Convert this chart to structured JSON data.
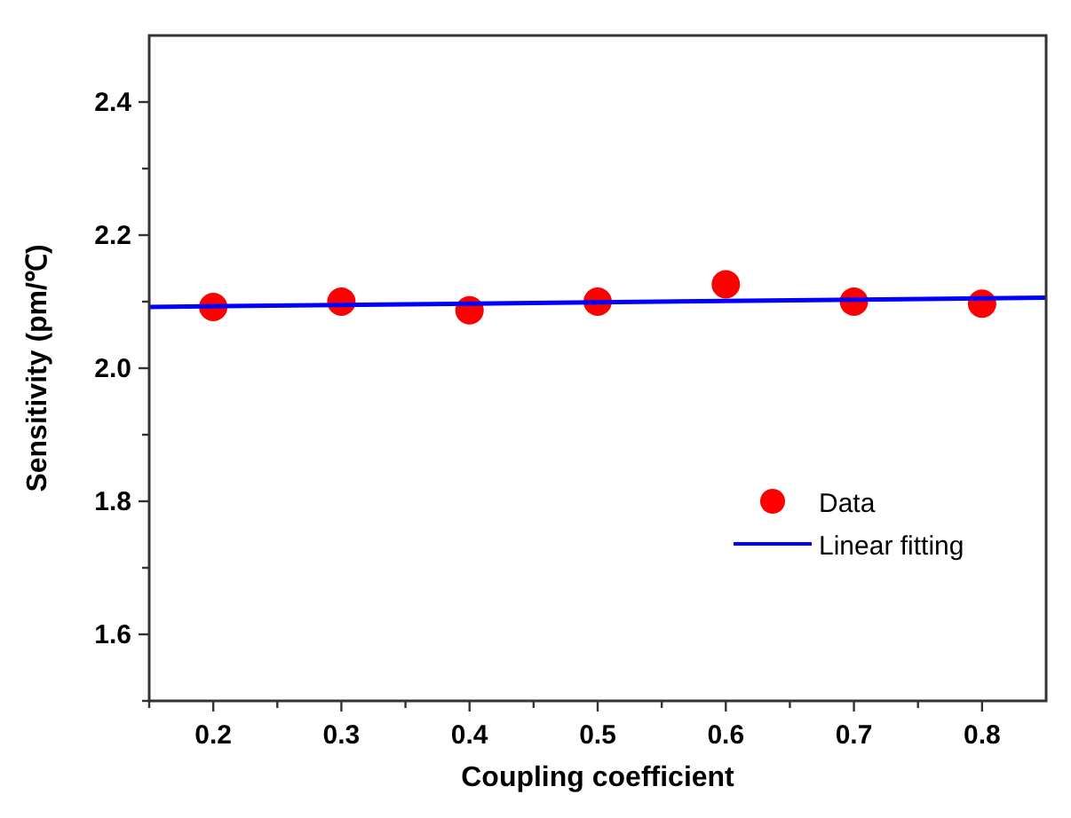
{
  "chart_data": {
    "type": "scatter",
    "xlabel": "Coupling coefficient",
    "ylabel": "Sensitivity (pm/℃)",
    "x": [
      0.2,
      0.3,
      0.4,
      0.5,
      0.6,
      0.7,
      0.8
    ],
    "series": [
      {
        "name": "Data",
        "color": "#ff0000",
        "marker": "circle",
        "values": [
          2.092,
          2.1,
          2.087,
          2.1,
          2.126,
          2.1,
          2.097
        ]
      },
      {
        "name": "Linear fitting",
        "type": "line",
        "color": "#0000ff",
        "line_style": "solid",
        "x": [
          0.15,
          0.85
        ],
        "values": [
          2.092,
          2.106
        ]
      }
    ],
    "xlim": [
      0.15,
      0.85
    ],
    "ylim": [
      1.5,
      2.5
    ],
    "xticks": [
      {
        "value": 0.15,
        "label": null
      },
      {
        "value": 0.2,
        "label": "0.2"
      },
      {
        "value": 0.25,
        "label": null
      },
      {
        "value": 0.3,
        "label": "0.3"
      },
      {
        "value": 0.35,
        "label": null
      },
      {
        "value": 0.4,
        "label": "0.4"
      },
      {
        "value": 0.45,
        "label": null
      },
      {
        "value": 0.5,
        "label": "0.5"
      },
      {
        "value": 0.55,
        "label": null
      },
      {
        "value": 0.6,
        "label": "0.6"
      },
      {
        "value": 0.65,
        "label": null
      },
      {
        "value": 0.7,
        "label": "0.7"
      },
      {
        "value": 0.75,
        "label": null
      },
      {
        "value": 0.8,
        "label": "0.8"
      }
    ],
    "yticks": [
      {
        "value": 1.5,
        "label": null
      },
      {
        "value": 1.6,
        "label": "1.6"
      },
      {
        "value": 1.7,
        "label": null
      },
      {
        "value": 1.8,
        "label": "1.8"
      },
      {
        "value": 1.9,
        "label": null
      },
      {
        "value": 2.0,
        "label": "2.0"
      },
      {
        "value": 2.1,
        "label": null
      },
      {
        "value": 2.2,
        "label": "2.2"
      },
      {
        "value": 2.3,
        "label": null
      },
      {
        "value": 2.4,
        "label": "2.4"
      }
    ],
    "grid": false,
    "legend": "right"
  }
}
